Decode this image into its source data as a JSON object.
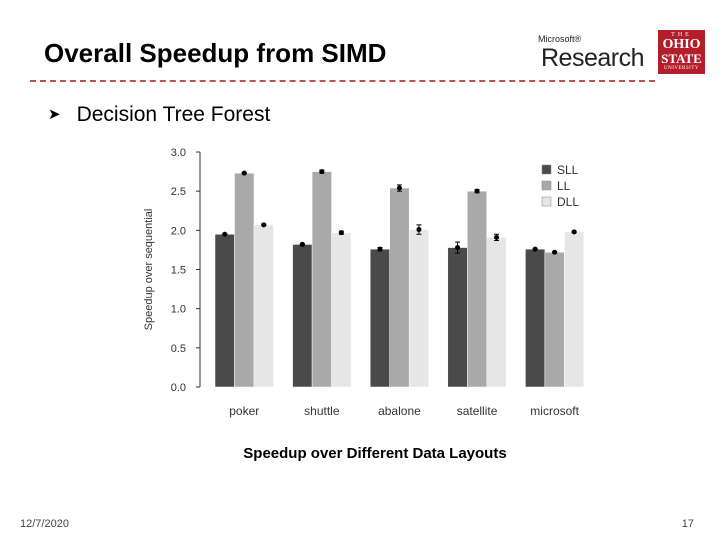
{
  "slide": {
    "title": "Overall Speedup from SIMD",
    "bullet": "Decision Tree Forest",
    "caption": "Speedup over Different Data Layouts",
    "date": "12/7/2020",
    "page_number": "17"
  },
  "logos": {
    "microsoft_small": "Microsoft®",
    "microsoft_big": "Research",
    "osu_the": "THE",
    "osu_ohio": "OHIO",
    "osu_state": "STATE",
    "osu_university": "UNIVERSITY"
  },
  "colors": {
    "accent_rule": "#c0504d",
    "SLL": "#4a4a4a",
    "LL": "#a9a9a9",
    "DLL": "#e6e6e6"
  },
  "chart_data": {
    "type": "bar",
    "title": "",
    "xlabel": "",
    "ylabel": "Speedup over sequential",
    "ylim": [
      0,
      3.0
    ],
    "yticks": [
      "0.0",
      "0.5",
      "1.0",
      "1.5",
      "2.0",
      "2.5",
      "3.0"
    ],
    "categories": [
      "poker",
      "shuttle",
      "abalone",
      "satellite",
      "microsoft"
    ],
    "legend_position": "top-right",
    "series": [
      {
        "name": "SLL",
        "values": [
          1.95,
          1.82,
          1.76,
          1.78,
          1.76
        ],
        "errors": [
          0.01,
          0.01,
          0.02,
          0.07,
          0.01
        ]
      },
      {
        "name": "LL",
        "values": [
          2.73,
          2.75,
          2.54,
          2.5,
          1.72
        ],
        "errors": [
          0.01,
          0.02,
          0.04,
          0.02,
          0.01
        ]
      },
      {
        "name": "DLL",
        "values": [
          2.07,
          1.97,
          2.01,
          1.91,
          1.98
        ],
        "errors": [
          0.01,
          0.02,
          0.06,
          0.04,
          0.01
        ]
      }
    ]
  }
}
